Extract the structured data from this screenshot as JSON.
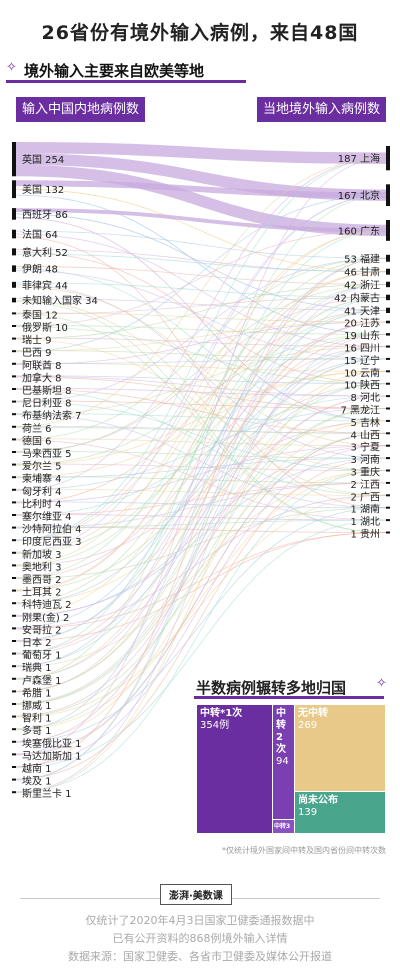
{
  "title": "26省份有境外输入病例，来自48国",
  "subtitle": "境外输入主要来自欧美等地",
  "left_header": "输入中国内地病例数",
  "right_header": "当地境外输入病例数",
  "chart_data": [
    {
      "type": "sankey",
      "sources": [
        {
          "name": "英国",
          "value": 254
        },
        {
          "name": "美国",
          "value": 132
        },
        {
          "name": "西班牙",
          "value": 86
        },
        {
          "name": "法国",
          "value": 64
        },
        {
          "name": "意大利",
          "value": 52
        },
        {
          "name": "伊朗",
          "value": 48
        },
        {
          "name": "菲律宾",
          "value": 44
        },
        {
          "name": "未知输入国家",
          "value": 34
        },
        {
          "name": "泰国",
          "value": 12
        },
        {
          "name": "俄罗斯",
          "value": 10
        },
        {
          "name": "瑞士",
          "value": 9
        },
        {
          "name": "巴西",
          "value": 9
        },
        {
          "name": "阿联酋",
          "value": 8
        },
        {
          "name": "加拿大",
          "value": 8
        },
        {
          "name": "巴基斯坦",
          "value": 8
        },
        {
          "name": "尼日利亚",
          "value": 8
        },
        {
          "name": "布基纳法索",
          "value": 7
        },
        {
          "name": "荷兰",
          "value": 6
        },
        {
          "name": "德国",
          "value": 6
        },
        {
          "name": "马来西亚",
          "value": 5
        },
        {
          "name": "爱尔兰",
          "value": 5
        },
        {
          "name": "柬埔寨",
          "value": 4
        },
        {
          "name": "匈牙利",
          "value": 4
        },
        {
          "name": "比利时",
          "value": 4
        },
        {
          "name": "塞尔维亚",
          "value": 4
        },
        {
          "name": "沙特阿拉伯",
          "value": 4
        },
        {
          "name": "印度尼西亚",
          "value": 3
        },
        {
          "name": "新加坡",
          "value": 3
        },
        {
          "name": "奥地利",
          "value": 3
        },
        {
          "name": "墨西哥",
          "value": 2
        },
        {
          "name": "土耳其",
          "value": 2
        },
        {
          "name": "科特迪瓦",
          "value": 2
        },
        {
          "name": "刚果(金)",
          "value": 2
        },
        {
          "name": "安哥拉",
          "value": 2
        },
        {
          "name": "日本",
          "value": 2
        },
        {
          "name": "葡萄牙",
          "value": 1
        },
        {
          "name": "瑞典",
          "value": 1
        },
        {
          "name": "卢森堡",
          "value": 1
        },
        {
          "name": "希腊",
          "value": 1
        },
        {
          "name": "挪威",
          "value": 1
        },
        {
          "name": "智利",
          "value": 1
        },
        {
          "name": "多哥",
          "value": 1
        },
        {
          "name": "埃塞俄比亚",
          "value": 1
        },
        {
          "name": "马达加斯加",
          "value": 1
        },
        {
          "name": "越南",
          "value": 1
        },
        {
          "name": "埃及",
          "value": 1
        },
        {
          "name": "斯里兰卡",
          "value": 1
        }
      ],
      "targets": [
        {
          "name": "上海",
          "value": 187
        },
        {
          "name": "北京",
          "value": 167
        },
        {
          "name": "广东",
          "value": 160
        },
        {
          "name": "福建",
          "value": 53
        },
        {
          "name": "甘肃",
          "value": 46
        },
        {
          "name": "浙江",
          "value": 42
        },
        {
          "name": "内蒙古",
          "value": 42
        },
        {
          "name": "天津",
          "value": 41
        },
        {
          "name": "江苏",
          "value": 20
        },
        {
          "name": "山东",
          "value": 19
        },
        {
          "name": "四川",
          "value": 16
        },
        {
          "name": "辽宁",
          "value": 15
        },
        {
          "name": "云南",
          "value": 10
        },
        {
          "name": "陕西",
          "value": 10
        },
        {
          "name": "河北",
          "value": 8
        },
        {
          "name": "黑龙江",
          "value": 7
        },
        {
          "name": "吉林",
          "value": 5
        },
        {
          "name": "山西",
          "value": 4
        },
        {
          "name": "宁夏",
          "value": 3
        },
        {
          "name": "河南",
          "value": 3
        },
        {
          "name": "重庆",
          "value": 3
        },
        {
          "name": "江西",
          "value": 2
        },
        {
          "name": "广西",
          "value": 2
        },
        {
          "name": "湖南",
          "value": 1
        },
        {
          "name": "湖北",
          "value": 1
        },
        {
          "name": "贵州",
          "value": 1
        }
      ]
    },
    {
      "type": "treemap",
      "title": "半数病例辗转多地归国",
      "items": [
        {
          "label": "中转*1次",
          "value": 354,
          "value_label": "354例",
          "color": "#6a2ea0"
        },
        {
          "label": "中转2次",
          "value": 94,
          "value_label": "94",
          "color": "#7a3fb0"
        },
        {
          "label": "中转3次",
          "value": 12,
          "value_label": "12",
          "color": "#8a52c0"
        },
        {
          "label": "无中转",
          "value": 269,
          "value_label": "269",
          "color": "#e8c98a"
        },
        {
          "label": "尚未公布",
          "value": 139,
          "value_label": "139",
          "color": "#4aa58d"
        }
      ],
      "note": "*仅统计境外国家间中转及国内省份间中转次数"
    }
  ],
  "colors": {
    "accent": "#6a2ea0",
    "flow_main": "#c7a9dd"
  },
  "footer": {
    "logo": "澎湃·美数课",
    "line1": "仅统计了2020年4月3日国家卫健委通报数据中",
    "line2": "已有公开资料的868例境外输入详情",
    "line3": "数据来源：国家卫健委、各省市卫健委及媒体公开报道"
  }
}
